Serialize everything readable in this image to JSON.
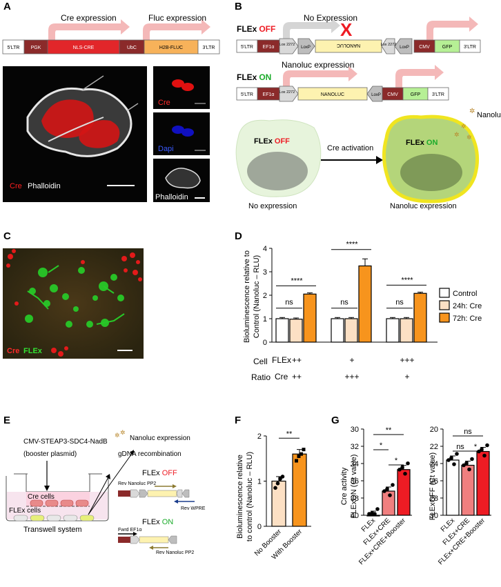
{
  "panels": {
    "A": "A",
    "B": "B",
    "C": "C",
    "D": "D",
    "E": "E",
    "F": "F",
    "G": "G"
  },
  "panelA": {
    "cre_expression": "Cre expression",
    "fluc_expression": "Fluc expression",
    "construct": [
      "5'LTR",
      "PGK",
      "NLS-CRE",
      "UbC",
      "H2B-FLUC",
      "3'LTR"
    ],
    "main_labels": {
      "cre": "Cre",
      "phalloidin": "Phalloidin"
    },
    "side_labels": [
      "Cre",
      "Dapi",
      "Phalloidin"
    ]
  },
  "panelB": {
    "flex_label": "FLEx",
    "off": "OFF",
    "on": "ON",
    "no_expression": "No Expression",
    "nanoluc_expression": "Nanoluc expression",
    "off_construct": [
      "5'LTR",
      "EF1α",
      "Lox 2272",
      "LoxP",
      "NANOLUC",
      "Lox 2272",
      "LoxP",
      "CMV",
      "GFP",
      "3'LTR"
    ],
    "on_construct": [
      "5'LTR",
      "EF1α",
      "Lox 2272",
      "NANOLUC",
      "LoxP",
      "CMV",
      "GFP",
      "3'LTR"
    ],
    "cre_activation": "Cre activation",
    "cell_off_caption": "No expression",
    "cell_on_caption": "Nanoluc expression",
    "nanoluc_tag": "Nanoluc"
  },
  "panelC": {
    "cre": "Cre",
    "flex": "FLEx"
  },
  "panelD": {
    "ylabel_1": "Bioluminescence relative to",
    "ylabel_2": "Control (Nanoluc – RLU)",
    "cell_label": "Cell",
    "ratio_label": "Ratio",
    "flex_row_label": "FLEx",
    "cre_row_label": "Cre",
    "flex_ratios": [
      "++",
      "+",
      "+++"
    ],
    "cre_ratios": [
      "++",
      "+++",
      "+"
    ],
    "significance": [
      "ns",
      "****",
      "ns",
      "****",
      "ns",
      "****"
    ]
  },
  "panelE": {
    "plasmid_1": "CMV-STEAP3-SDC4-NadB",
    "plasmid_2": "(booster plasmid)",
    "cre_cells": "Cre cells",
    "flex_cells": "FLEx cells",
    "transwell": "Transwell system",
    "nanoluc_expression": "Nanoluc expression",
    "gdna": "gDNA recombination",
    "flex_off": "FLEx OFF",
    "flex_on": "FLEx ON",
    "rev_nanoluc_1": "Rev Nanoluc PP2",
    "rev_wpre": "Rev WPRE",
    "fwrd_ef1a": "Fwrd EF1α",
    "rev_nanoluc_2": "Rev Nanoluc PP2"
  },
  "panelF": {
    "ylabel_1": "Bioluminescence relative",
    "ylabel_2": "to control (Nanoluc – RLU)",
    "significance": "**"
  },
  "panelG": {
    "left_ylabel_1": "Cre activity",
    "left_ylabel_2": "FLExON (Ct value)",
    "right_ylabel": "FLExOFF (Ct value)",
    "left_sig": [
      "**",
      "*",
      "*"
    ],
    "right_sig": [
      "ns",
      "ns",
      "*"
    ]
  },
  "chart_data": [
    {
      "type": "bar",
      "panel": "D",
      "groups": [
        "++ / ++",
        "+ / +++",
        "+++ / +"
      ],
      "series": [
        {
          "name": "Control",
          "values": [
            1.0,
            1.0,
            1.0
          ],
          "color": "#ffffff"
        },
        {
          "name": "24h: Cre",
          "values": [
            0.98,
            1.0,
            1.0
          ],
          "color": "#fce0c4"
        },
        {
          "name": "72h: Cre",
          "values": [
            2.05,
            3.25,
            2.08
          ],
          "color": "#f7941d"
        }
      ],
      "ylim": [
        0,
        4
      ],
      "yticks": [
        0,
        1,
        2,
        3,
        4
      ]
    },
    {
      "type": "bar",
      "panel": "F",
      "categories": [
        "No Booster",
        "With Booster"
      ],
      "values": [
        1.0,
        1.6
      ],
      "colors": [
        "#fce0c4",
        "#f7941d"
      ],
      "ylim": [
        0,
        2
      ],
      "yticks": [
        0,
        1,
        2
      ]
    },
    {
      "type": "bar",
      "panel": "G-left",
      "categories": [
        "FLEx",
        "FLEx+CRE",
        "FLEx+CRE+Booster"
      ],
      "values": [
        40,
        37.2,
        34.7
      ],
      "colors": [
        "#ffffff",
        "#f07f7f",
        "#ee1c24"
      ],
      "ylim": [
        40,
        30
      ],
      "yticks": [
        40,
        38,
        36,
        34,
        32,
        30
      ],
      "inverted": true
    },
    {
      "type": "bar",
      "panel": "G-right",
      "categories": [
        "FLEx",
        "FLEx+CRE",
        "FLEx+CRE+Booster"
      ],
      "values": [
        23.6,
        24.2,
        22.6
      ],
      "colors": [
        "#ffffff",
        "#f07f7f",
        "#ee1c24"
      ],
      "ylim": [
        30,
        20
      ],
      "yticks": [
        20,
        22,
        24,
        26,
        28,
        30
      ],
      "inverted": true
    }
  ]
}
